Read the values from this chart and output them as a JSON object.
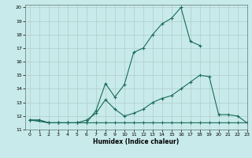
{
  "xlabel": "Humidex (Indice chaleur)",
  "xlim": [
    -0.5,
    23
  ],
  "ylim": [
    11,
    20.2
  ],
  "xticks": [
    0,
    1,
    2,
    3,
    4,
    5,
    6,
    7,
    8,
    9,
    10,
    11,
    12,
    13,
    14,
    15,
    16,
    17,
    18,
    19,
    20,
    21,
    22,
    23
  ],
  "yticks": [
    11,
    12,
    13,
    14,
    15,
    16,
    17,
    18,
    19,
    20
  ],
  "bg_color": "#c8eaea",
  "grid_color": "#b0cccc",
  "line_color": "#1a6b5a",
  "line1_x": [
    0,
    1,
    2,
    3,
    4,
    5,
    6,
    7,
    8,
    9,
    10,
    11,
    12,
    13,
    14,
    15,
    16,
    17,
    18,
    19,
    20,
    21,
    22,
    23
  ],
  "line1_y": [
    11.7,
    11.7,
    11.5,
    11.5,
    11.5,
    11.5,
    11.5,
    11.5,
    11.5,
    11.5,
    11.5,
    11.5,
    11.5,
    11.5,
    11.5,
    11.5,
    11.5,
    11.5,
    11.5,
    11.5,
    11.5,
    11.5,
    11.5,
    11.5
  ],
  "line2_x": [
    0,
    2,
    3,
    4,
    5,
    6,
    7,
    8,
    9,
    10,
    11,
    12,
    13,
    14,
    15,
    16,
    17,
    18
  ],
  "line2_y": [
    11.7,
    11.5,
    11.5,
    11.5,
    11.5,
    11.5,
    12.4,
    14.4,
    13.4,
    14.3,
    16.7,
    17.0,
    18.0,
    18.8,
    19.2,
    20.0,
    17.5,
    17.2
  ],
  "line3_x": [
    0,
    1,
    2,
    3,
    4,
    5,
    6,
    7,
    8,
    9,
    10,
    11,
    12,
    13,
    14,
    15,
    16,
    17,
    18,
    19,
    20,
    21,
    22,
    23
  ],
  "line3_y": [
    11.7,
    11.7,
    11.5,
    11.5,
    11.5,
    11.5,
    11.7,
    12.2,
    13.2,
    12.5,
    12.0,
    12.2,
    12.5,
    13.0,
    13.3,
    13.5,
    14.0,
    14.5,
    15.0,
    14.9,
    12.1,
    12.1,
    12.0,
    11.5
  ]
}
